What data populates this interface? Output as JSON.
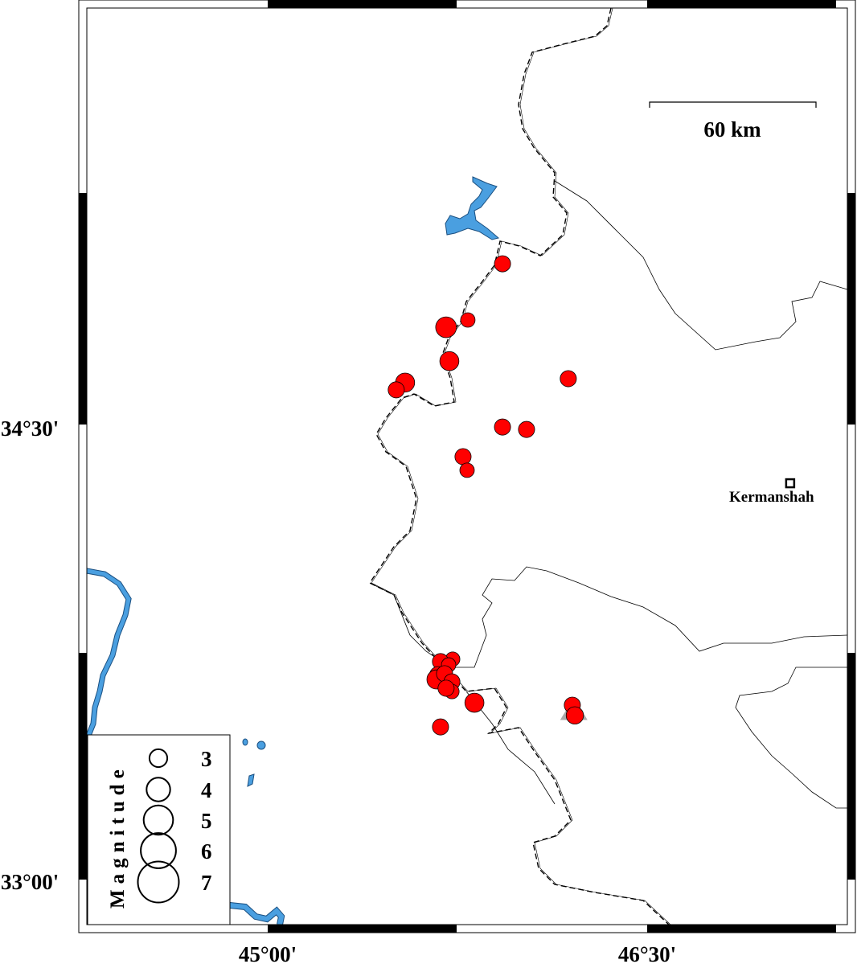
{
  "map": {
    "axis_labels": {
      "lat": [
        "34°30'",
        "33°00'"
      ],
      "lon": [
        "45°00'",
        "46°30'"
      ]
    },
    "scale_bar": {
      "label": "60 km"
    },
    "city": {
      "name": "Kermanshah",
      "lon": 47.065,
      "lat": 34.311
    },
    "station": {
      "type": "triangle",
      "color": "#aaaaaa",
      "lon": 46.21,
      "lat": 33.56
    },
    "colors": {
      "events": "#ff0000",
      "water": "#4a9fe0",
      "border": "#000000"
    },
    "legend": {
      "title": "Magnitude",
      "items": [
        {
          "mag": 3,
          "label": "3"
        },
        {
          "mag": 4,
          "label": "4"
        },
        {
          "mag": 5,
          "label": "5"
        },
        {
          "mag": 6,
          "label": "6"
        },
        {
          "mag": 7,
          "label": "7"
        }
      ]
    },
    "events": [
      {
        "lon": 45.928,
        "lat": 35.037,
        "mag": 2.8
      },
      {
        "lon": 45.791,
        "lat": 34.851,
        "mag": 2.5
      },
      {
        "lon": 45.705,
        "lat": 34.827,
        "mag": 3.6
      },
      {
        "lon": 45.718,
        "lat": 34.715,
        "mag": 3.3
      },
      {
        "lon": 45.543,
        "lat": 34.644,
        "mag": 3.3
      },
      {
        "lon": 45.508,
        "lat": 34.62,
        "mag": 2.8
      },
      {
        "lon": 46.188,
        "lat": 34.657,
        "mag": 2.8
      },
      {
        "lon": 45.928,
        "lat": 34.497,
        "mag": 2.8
      },
      {
        "lon": 46.023,
        "lat": 34.489,
        "mag": 2.8
      },
      {
        "lon": 45.772,
        "lat": 34.399,
        "mag": 2.8
      },
      {
        "lon": 45.788,
        "lat": 34.354,
        "mag": 2.5
      },
      {
        "lon": 45.731,
        "lat": 33.729,
        "mag": 2.5
      },
      {
        "lon": 45.683,
        "lat": 33.721,
        "mag": 2.8
      },
      {
        "lon": 45.715,
        "lat": 33.71,
        "mag": 2.5
      },
      {
        "lon": 45.674,
        "lat": 33.676,
        "mag": 3.0
      },
      {
        "lon": 45.667,
        "lat": 33.662,
        "mag": 3.3
      },
      {
        "lon": 45.699,
        "lat": 33.681,
        "mag": 2.8
      },
      {
        "lon": 45.728,
        "lat": 33.654,
        "mag": 2.8
      },
      {
        "lon": 45.728,
        "lat": 33.622,
        "mag": 2.5
      },
      {
        "lon": 45.705,
        "lat": 33.633,
        "mag": 2.8
      },
      {
        "lon": 45.817,
        "lat": 33.585,
        "mag": 3.3
      },
      {
        "lon": 45.683,
        "lat": 33.505,
        "mag": 2.8
      },
      {
        "lon": 46.204,
        "lat": 33.577,
        "mag": 2.8
      },
      {
        "lon": 46.214,
        "lat": 33.543,
        "mag": 3.0
      }
    ]
  }
}
